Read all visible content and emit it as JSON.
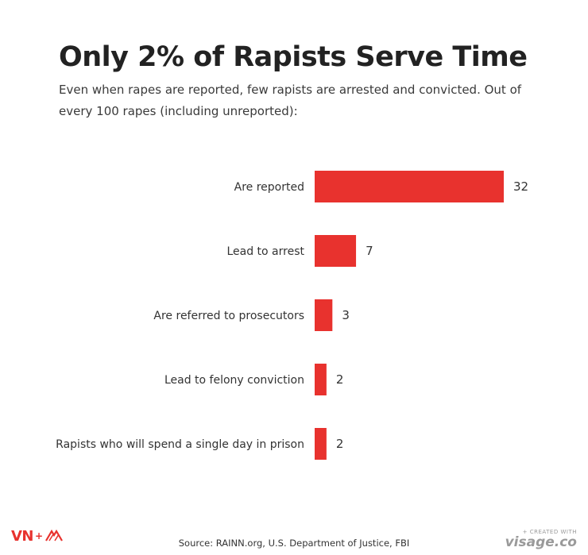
{
  "title": "Only 2% of Rapists Serve Time",
  "subtitle": "Even when rapes are reported, few rapists are arrested and convicted. Out of every 100 rapes (including unreported):",
  "source": "Source: RAINN.org, U.S. Department of Justice, FBI",
  "logo": {
    "text": "VN",
    "plus": "+"
  },
  "credit": {
    "top": "+ CREATED WITH",
    "brand": "visage.co"
  },
  "colors": {
    "bar": "#e8322e",
    "text": "#2b2b2b"
  },
  "chart_data": {
    "type": "bar",
    "orientation": "horizontal",
    "categories": [
      "Are reported",
      "Lead to arrest",
      "Are referred to prosecutors",
      "Lead to felony conviction",
      "Rapists who will spend a single day in prison"
    ],
    "values": [
      32,
      7,
      3,
      2,
      2
    ],
    "xlim": [
      0,
      32
    ],
    "grid": false,
    "legend": "none",
    "title": "Only 2% of Rapists Serve Time"
  }
}
